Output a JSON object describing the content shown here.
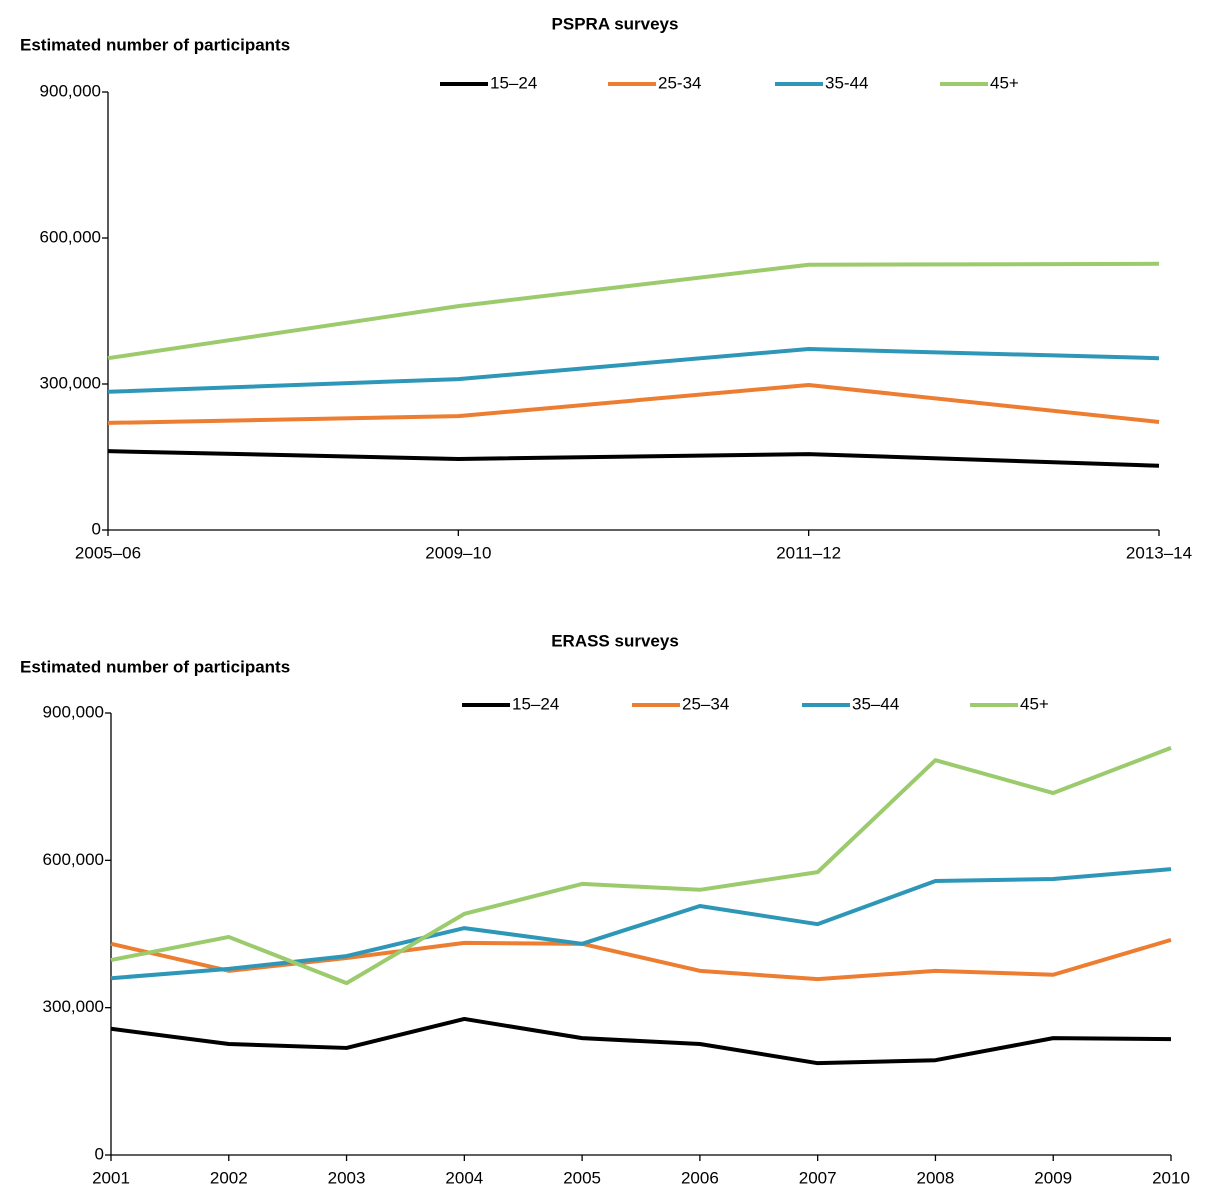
{
  "chart_data": [
    {
      "type": "line",
      "title": "PSPRA surveys",
      "y_label": "Estimated number of participants",
      "categories": [
        "2005–06",
        "2009–10",
        "2011–12",
        "2013–14"
      ],
      "ylim": [
        0,
        900000
      ],
      "yticks": [
        0,
        {
          "value": 300000,
          "label": "300,000"
        },
        {
          "value": 600000,
          "label": "600,000"
        },
        {
          "value": 900000,
          "label": "900,000"
        }
      ],
      "series": [
        {
          "name": "15–24",
          "color": "#000000",
          "values": [
            162000,
            146000,
            156000,
            132000
          ]
        },
        {
          "name": "25-34",
          "color": "#ED7D31",
          "values": [
            220000,
            234000,
            298000,
            222000
          ]
        },
        {
          "name": "35-44",
          "color": "#2E97B8",
          "values": [
            284000,
            310000,
            372000,
            353000
          ]
        },
        {
          "name": "45+",
          "color": "#9BCB6C",
          "values": [
            353000,
            460000,
            545000,
            547000
          ]
        }
      ]
    },
    {
      "type": "line",
      "title": "ERASS surveys",
      "y_label": "Estimated number of participants",
      "categories": [
        "2001",
        "2002",
        "2003",
        "2004",
        "2005",
        "2006",
        "2007",
        "2008",
        "2009",
        "2010"
      ],
      "ylim": [
        0,
        900000
      ],
      "yticks": [
        0,
        {
          "value": 300000,
          "label": "300,000"
        },
        {
          "value": 600000,
          "label": "600,000"
        },
        {
          "value": 900000,
          "label": "900,000"
        }
      ],
      "series": [
        {
          "name": "15–24",
          "color": "#000000",
          "values": [
            257000,
            226000,
            218000,
            277000,
            238000,
            226000,
            187000,
            193000,
            238000,
            236000
          ]
        },
        {
          "name": "25–34",
          "color": "#ED7D31",
          "values": [
            430000,
            375000,
            401000,
            432000,
            430000,
            375000,
            358000,
            375000,
            367000,
            438000
          ]
        },
        {
          "name": "35–44",
          "color": "#2E97B8",
          "values": [
            360000,
            379000,
            405000,
            462000,
            430000,
            507000,
            470000,
            558000,
            562000,
            582000
          ]
        },
        {
          "name": "45+",
          "color": "#9BCB6C",
          "values": [
            397000,
            444000,
            350000,
            491000,
            552000,
            540000,
            576000,
            804000,
            737000,
            829000
          ]
        }
      ]
    }
  ]
}
